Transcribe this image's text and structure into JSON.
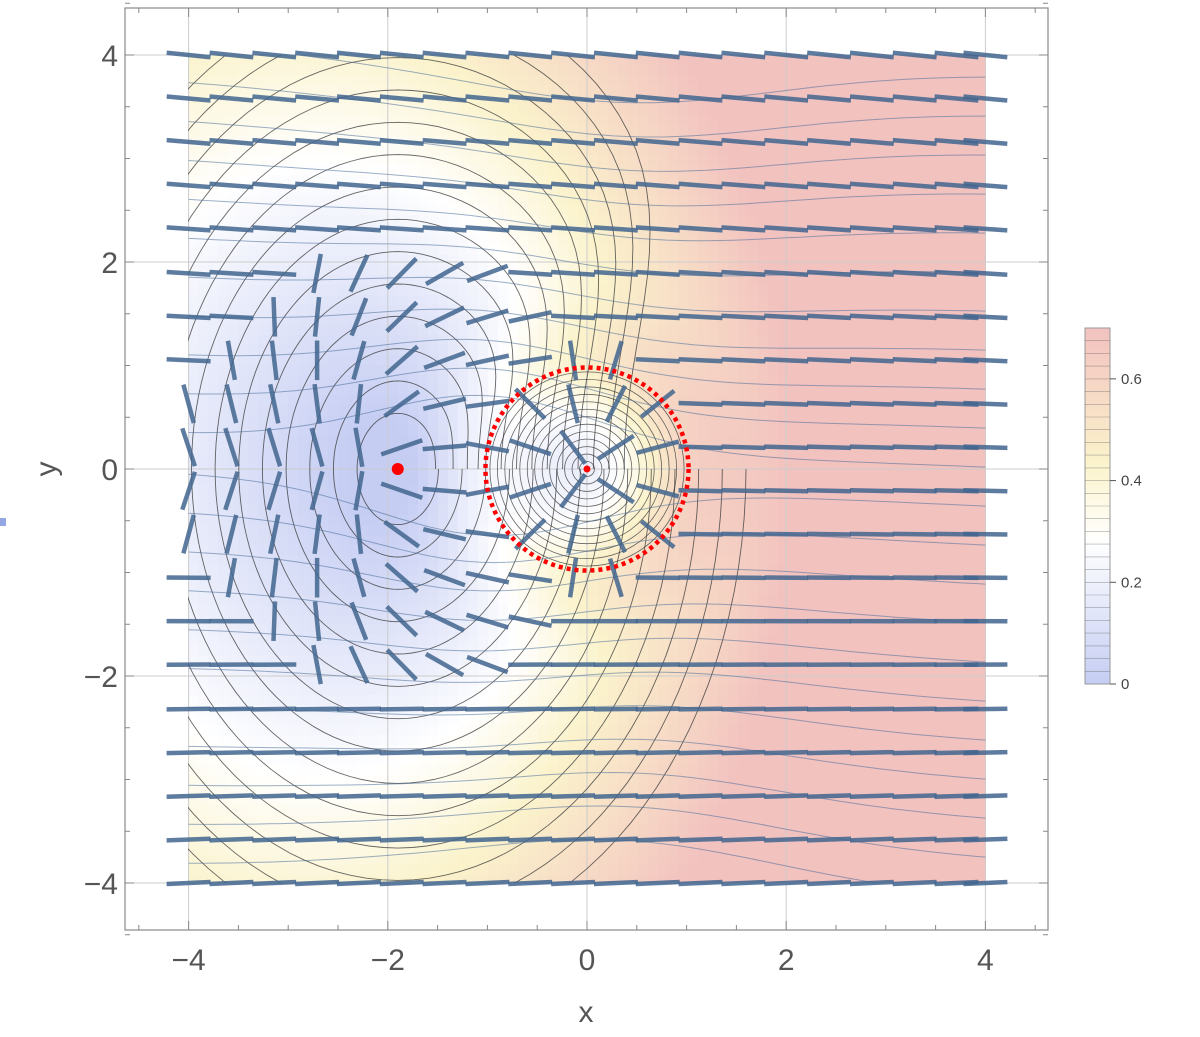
{
  "chart_data": {
    "type": "heatmap",
    "subtype": "density-plot with contour lines, stream lines and vector field",
    "xlabel": "x",
    "ylabel": "y",
    "xlim": [
      -4.6,
      4.6
    ],
    "ylim": [
      -4.5,
      4.5
    ],
    "x_ticks": [
      -4,
      -2,
      0,
      2,
      4
    ],
    "y_ticks": [
      -4,
      -2,
      0,
      2,
      4
    ],
    "x_tick_labels": [
      "−4",
      "−2",
      "0",
      "2",
      "4"
    ],
    "y_tick_labels": [
      "−4",
      "−2",
      "0",
      "2",
      "4"
    ],
    "grid": true,
    "domain": {
      "x": [
        -4,
        4
      ],
      "y": [
        -4,
        4
      ]
    },
    "colorbar": {
      "range": [
        0,
        0.7
      ],
      "ticks": [
        0,
        0.2,
        0.4,
        0.6
      ],
      "tick_labels": [
        "0",
        "0.2",
        "0.4",
        "0.6"
      ],
      "colors": [
        "#c5cdf3",
        "#ffffff",
        "#fbf3cc",
        "#f2c2bf"
      ],
      "placement": "right"
    },
    "points": [
      {
        "x": -1.9,
        "y": 0,
        "color": "#ff0000"
      },
      {
        "x": 0,
        "y": 0,
        "color": "#ff0000"
      }
    ],
    "circle": {
      "center": [
        0,
        0
      ],
      "radius": 1,
      "style": "dotted",
      "color": "#ff0000"
    },
    "vector_grid": {
      "x": [
        -4,
        -3.57,
        -3.14,
        -2.71,
        -2.29,
        -1.86,
        -1.43,
        -1,
        -0.57,
        -0.14,
        0.29,
        0.71,
        1.14,
        1.57,
        2,
        2.43,
        2.86,
        3.29,
        3.71,
        4
      ],
      "y": [
        -4,
        -3.58,
        -3.16,
        -2.74,
        -2.32,
        -1.89,
        -1.47,
        -1.05,
        -0.63,
        -0.21,
        0.21,
        0.63,
        1.05,
        1.47,
        1.89,
        2.32,
        2.74,
        3.16,
        3.58,
        4
      ]
    },
    "colors": {
      "contour": "#333333",
      "stream": "#4a6d99",
      "vector": "#42668f",
      "frame": "#888888",
      "grid": "#cccccc"
    }
  }
}
